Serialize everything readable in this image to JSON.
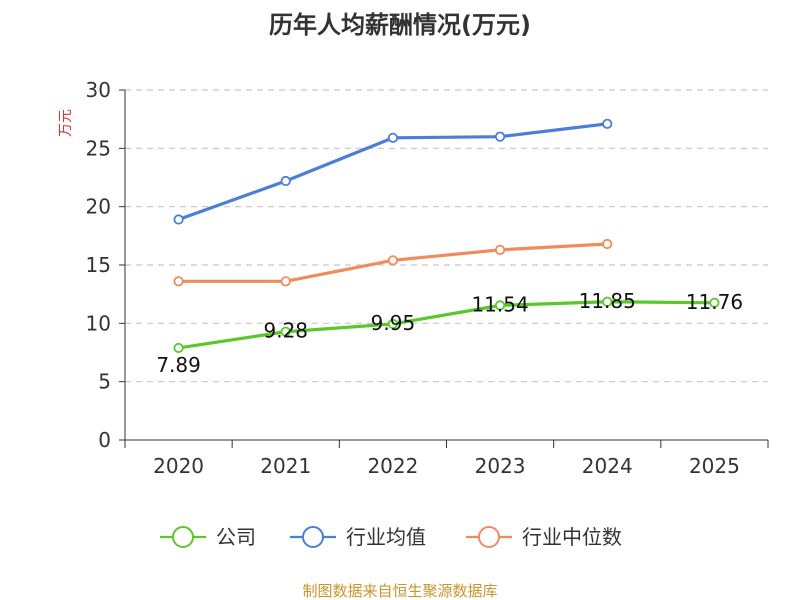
{
  "chart_data": {
    "type": "line",
    "title": "历年人均薪酬情况(万元)",
    "ylabel": "万元",
    "xlabel": "",
    "categories": [
      "2020",
      "2021",
      "2022",
      "2023",
      "2024",
      "2025"
    ],
    "ylim": [
      0,
      30
    ],
    "yticks": [
      "0",
      "5",
      "10",
      "15",
      "20",
      "25",
      "30"
    ],
    "grid": true,
    "legend_position": "bottom",
    "series": [
      {
        "name": "公司",
        "color": "#5ac82a",
        "values": [
          7.89,
          9.28,
          9.95,
          11.54,
          11.85,
          11.76
        ],
        "labels": [
          "7.89",
          "9.28",
          "9.95",
          "11.54",
          "11.85",
          "11.76"
        ]
      },
      {
        "name": "行业均值",
        "color": "#4a7fd6",
        "values": [
          18.9,
          22.2,
          25.9,
          26.0,
          27.1,
          null
        ],
        "labels": null
      },
      {
        "name": "行业中位数",
        "color": "#f08c5a",
        "values": [
          13.6,
          13.6,
          15.4,
          16.3,
          16.8,
          null
        ],
        "labels": null
      }
    ],
    "source": "制图数据来自恒生聚源数据库"
  }
}
